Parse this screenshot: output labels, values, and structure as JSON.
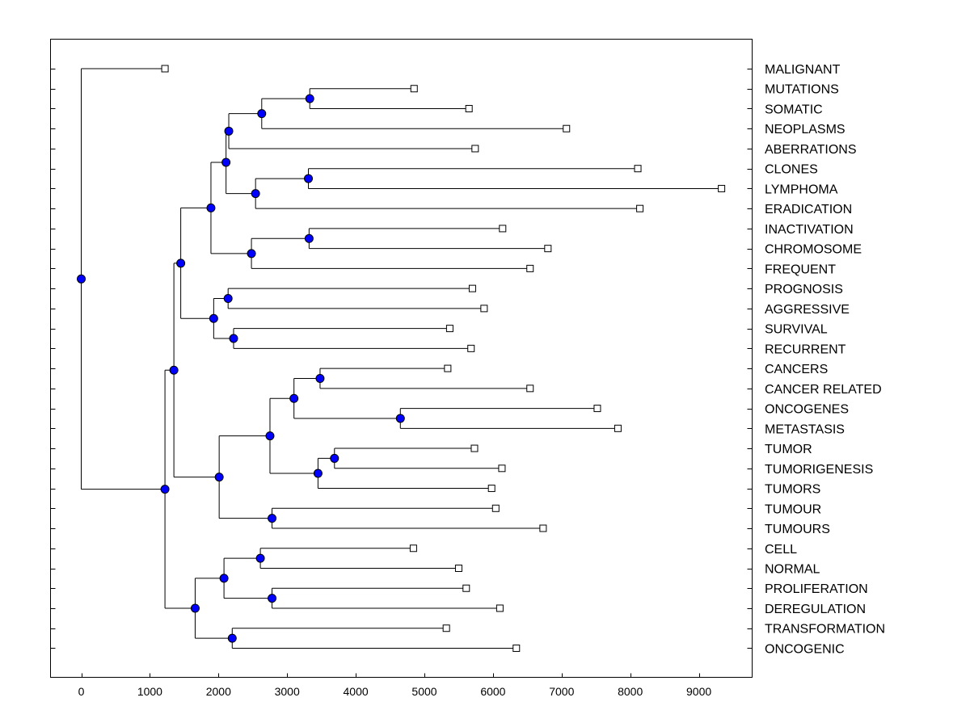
{
  "chart_data": {
    "type": "dendrogram",
    "title": "",
    "xlabel": "",
    "ylabel": "",
    "xlim": [
      -450,
      9700
    ],
    "xticks": [
      0,
      1000,
      2000,
      3000,
      4000,
      5000,
      6000,
      7000,
      8000,
      9000
    ],
    "grid": false,
    "colors": {
      "node_fill": "#0000ff",
      "line": "#000000",
      "leaf_fill": "#ffffff"
    },
    "leaves": [
      {
        "label": "MALIGNANT",
        "x": 1220
      },
      {
        "label": "MUTATIONS",
        "x": 4850
      },
      {
        "label": "SOMATIC",
        "x": 5650
      },
      {
        "label": "NEOPLASMS",
        "x": 7070
      },
      {
        "label": "ABERRATIONS",
        "x": 5740
      },
      {
        "label": "CLONES",
        "x": 8110
      },
      {
        "label": "LYMPHOMA",
        "x": 9330
      },
      {
        "label": "ERADICATION",
        "x": 8140
      },
      {
        "label": "INACTIVATION",
        "x": 6140
      },
      {
        "label": "CHROMOSOME",
        "x": 6800
      },
      {
        "label": "FREQUENT",
        "x": 6540
      },
      {
        "label": "PROGNOSIS",
        "x": 5700
      },
      {
        "label": "AGGRESSIVE",
        "x": 5870
      },
      {
        "label": "SURVIVAL",
        "x": 5370
      },
      {
        "label": "RECURRENT",
        "x": 5680
      },
      {
        "label": "CANCERS",
        "x": 5340
      },
      {
        "label": "CANCER RELATED",
        "x": 6540
      },
      {
        "label": "ONCOGENES",
        "x": 7520
      },
      {
        "label": "METASTASIS",
        "x": 7820
      },
      {
        "label": "TUMOR",
        "x": 5730
      },
      {
        "label": "TUMORIGENESIS",
        "x": 6130
      },
      {
        "label": "TUMORS",
        "x": 5980
      },
      {
        "label": "TUMOUR",
        "x": 6040
      },
      {
        "label": "TUMOURS",
        "x": 6730
      },
      {
        "label": "CELL",
        "x": 4840
      },
      {
        "label": "NORMAL",
        "x": 5500
      },
      {
        "label": "PROLIFERATION",
        "x": 5610
      },
      {
        "label": "DEREGULATION",
        "x": 6100
      },
      {
        "label": "TRANSFORMATION",
        "x": 5320
      },
      {
        "label": "ONCOGENIC",
        "x": 6340
      }
    ],
    "nodes": [
      {
        "id": "n_mut_som",
        "x": 3330,
        "children": [
          "L1",
          "L2"
        ]
      },
      {
        "id": "n_ms_neo",
        "x": 2630,
        "children": [
          "n_mut_som",
          "L3"
        ]
      },
      {
        "id": "n_msn_abe",
        "x": 2150,
        "children": [
          "n_ms_neo",
          "L4"
        ]
      },
      {
        "id": "n_clo_lym",
        "x": 3310,
        "children": [
          "L5",
          "L6"
        ]
      },
      {
        "id": "n_cl_era",
        "x": 2540,
        "children": [
          "n_clo_lym",
          "L7"
        ]
      },
      {
        "id": "n_A_B",
        "x": 2110,
        "children": [
          "n_msn_abe",
          "n_cl_era"
        ]
      },
      {
        "id": "n_ina_chr",
        "x": 3320,
        "children": [
          "L8",
          "L9"
        ]
      },
      {
        "id": "n_ic_fre",
        "x": 2480,
        "children": [
          "n_ina_chr",
          "L10"
        ]
      },
      {
        "id": "n_AB_C",
        "x": 1890,
        "children": [
          "n_A_B",
          "n_ic_fre"
        ]
      },
      {
        "id": "n_pro_agg",
        "x": 2140,
        "children": [
          "L11",
          "L12"
        ]
      },
      {
        "id": "n_sur_rec",
        "x": 2220,
        "children": [
          "L13",
          "L14"
        ]
      },
      {
        "id": "n_pa_sr",
        "x": 1930,
        "children": [
          "n_pro_agg",
          "n_sur_rec"
        ]
      },
      {
        "id": "n_upper",
        "x": 1450,
        "children": [
          "n_AB_C",
          "n_pa_sr"
        ]
      },
      {
        "id": "n_can_cr",
        "x": 3480,
        "children": [
          "L15",
          "L16"
        ]
      },
      {
        "id": "n_onc_met",
        "x": 4650,
        "children": [
          "L17",
          "L18"
        ]
      },
      {
        "id": "n_cc_om",
        "x": 3100,
        "children": [
          "n_can_cr",
          "n_onc_met"
        ]
      },
      {
        "id": "n_tum_tgen",
        "x": 3690,
        "children": [
          "L19",
          "L20"
        ]
      },
      {
        "id": "n_tt_tumors",
        "x": 3450,
        "children": [
          "n_tum_tgen",
          "L21"
        ]
      },
      {
        "id": "n_cancer_tumor",
        "x": 2750,
        "children": [
          "n_cc_om",
          "n_tt_tumors"
        ]
      },
      {
        "id": "n_tmr_tmrs",
        "x": 2780,
        "children": [
          "L22",
          "L23"
        ]
      },
      {
        "id": "n_mid",
        "x": 2010,
        "children": [
          "n_cancer_tumor",
          "n_tmr_tmrs"
        ]
      },
      {
        "id": "n_up_mid",
        "x": 1350,
        "children": [
          "n_upper",
          "n_mid"
        ]
      },
      {
        "id": "n_cel_nor",
        "x": 2610,
        "children": [
          "L24",
          "L25"
        ]
      },
      {
        "id": "n_pro_der",
        "x": 2780,
        "children": [
          "L26",
          "L27"
        ]
      },
      {
        "id": "n_cn_pd",
        "x": 2080,
        "children": [
          "n_cel_nor",
          "n_pro_der"
        ]
      },
      {
        "id": "n_tra_onc",
        "x": 2200,
        "children": [
          "L28",
          "L29"
        ]
      },
      {
        "id": "n_low",
        "x": 1660,
        "children": [
          "n_cn_pd",
          "n_tra_onc"
        ]
      },
      {
        "id": "n_rest",
        "x": 1220,
        "children": [
          "n_up_mid",
          "n_low"
        ]
      },
      {
        "id": "n_root",
        "x": 0,
        "children": [
          "L0",
          "n_rest"
        ]
      }
    ]
  }
}
